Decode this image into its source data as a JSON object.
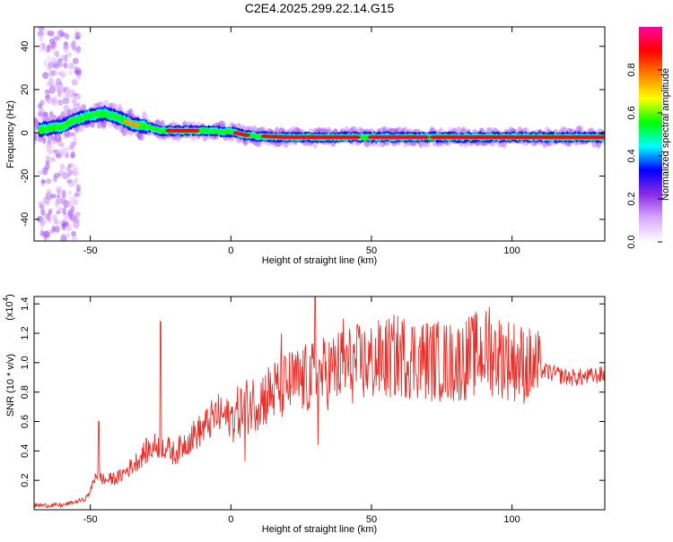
{
  "title": "C2E4.2025.299.22.14.G15",
  "chart_data": [
    {
      "type": "heatmap",
      "title": "C2E4.2025.299.22.14.G15",
      "xlabel": "Height of straight line (km)",
      "ylabel": "Frequency (Hz)",
      "xlim": [
        -70,
        133
      ],
      "ylim": [
        -50,
        49
      ],
      "xticks": [
        -50,
        0,
        50,
        100
      ],
      "yticks": [
        40,
        20,
        0,
        -20,
        -40
      ],
      "colorbar": {
        "label": "Normalized spectral amplitude",
        "range": [
          0.0,
          1.0
        ],
        "ticks": [
          "0.0",
          "0.2",
          "0.4",
          "0.6",
          "0.8"
        ],
        "tick_values": [
          0.0,
          0.2,
          0.4,
          0.6,
          0.8
        ],
        "colors": [
          "#ffffff",
          "#d8a8ff",
          "#8a2be2",
          "#0000ff",
          "#00ffff",
          "#00ff00",
          "#ffff00",
          "#ff8000",
          "#ff0000",
          "#ff00a0"
        ]
      },
      "signal_track": {
        "height_km": [
          -70,
          -60,
          -55,
          -50,
          -45,
          -40,
          -35,
          -30,
          -25,
          -20,
          -10,
          0,
          5,
          10,
          20,
          40,
          60,
          80,
          100,
          133
        ],
        "freq_hz": [
          1,
          3,
          6,
          8,
          9,
          7,
          4,
          3,
          1,
          1,
          1,
          0.5,
          -1,
          -1.5,
          -2,
          -2,
          -2,
          -2,
          -2,
          -2
        ]
      }
    },
    {
      "type": "line",
      "xlabel": "Height of straight line (km)",
      "ylabel": "SNR (10 * v/v)",
      "yscale_label": "(x10",
      "yscale_exp": "4",
      "yscale_close": ")",
      "xlim": [
        -70,
        133
      ],
      "ylim": [
        0,
        1.45
      ],
      "xticks": [
        -50,
        0,
        50,
        100
      ],
      "yticks": [
        0.2,
        0.4,
        0.6,
        0.8,
        1.0,
        1.2,
        1.4
      ],
      "ytick_labels": [
        "0.2",
        "0.4",
        "0.6",
        "0.8",
        "1.0",
        "1.2",
        "1.4"
      ],
      "color": "#e8302a",
      "envelope": {
        "x": [
          -70,
          -60,
          -52,
          -50,
          -48,
          -45,
          -40,
          -35,
          -30,
          -25,
          -20,
          -15,
          -10,
          -5,
          0,
          5,
          10,
          20,
          30,
          40,
          50,
          60,
          70,
          80,
          90,
          100,
          110,
          120,
          125,
          133
        ],
        "y": [
          0.03,
          0.03,
          0.07,
          0.12,
          0.25,
          0.2,
          0.22,
          0.3,
          0.4,
          0.45,
          0.38,
          0.48,
          0.55,
          0.65,
          0.62,
          0.7,
          0.75,
          0.85,
          0.9,
          0.98,
          1.0,
          1.05,
          1.02,
          1.0,
          1.08,
          1.02,
          0.95,
          0.9,
          0.9,
          0.92
        ]
      },
      "spikes": [
        {
          "x": -47,
          "y": 0.6
        },
        {
          "x": -25,
          "y": 1.28
        },
        {
          "x": 30,
          "y": 1.45
        },
        {
          "x": 31,
          "y": 0.44
        },
        {
          "x": 40,
          "y": 1.3
        },
        {
          "x": 92,
          "y": 1.38
        },
        {
          "x": 5,
          "y": 0.33
        },
        {
          "x": 18,
          "y": 1.2
        }
      ]
    }
  ]
}
